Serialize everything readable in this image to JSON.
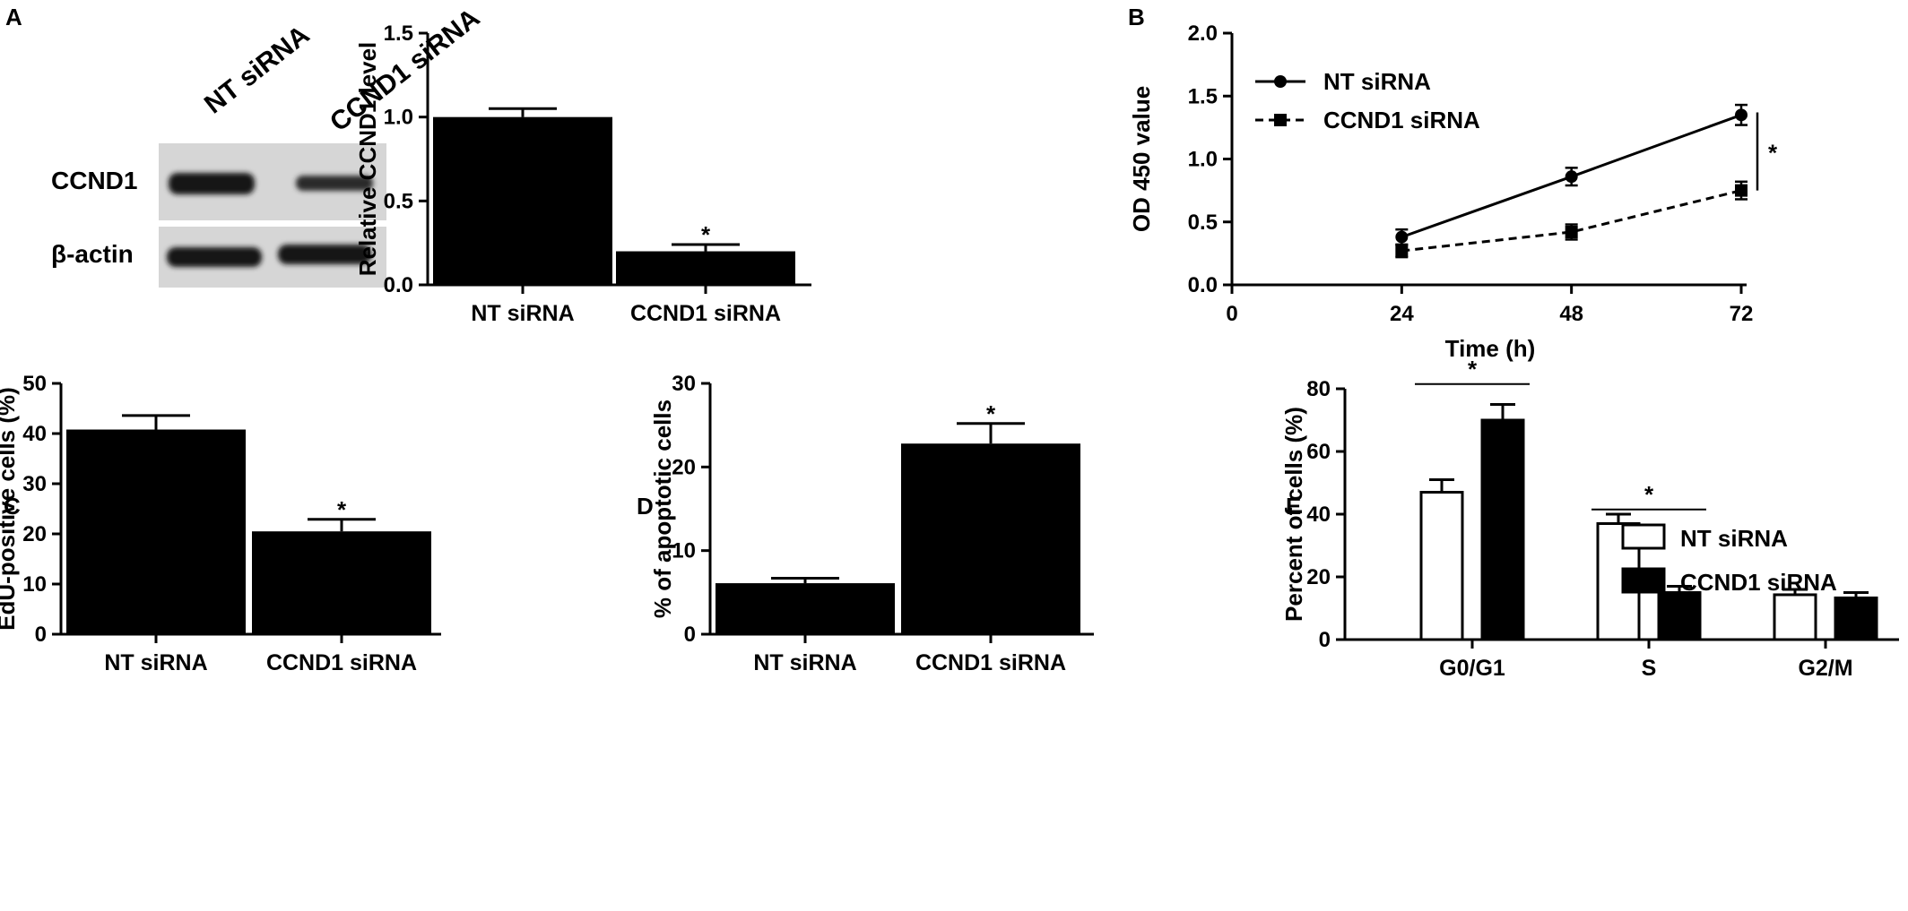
{
  "panels": {
    "a": "A",
    "b": "B",
    "c": "C",
    "d": "D",
    "e": "E"
  },
  "blot": {
    "lane_labels": [
      "NT siRNA",
      "CCND1 siRNA"
    ],
    "row_labels": [
      "CCND1",
      "β-actin"
    ]
  },
  "chart_data": [
    {
      "id": "A",
      "type": "bar",
      "categories": [
        "NT siRNA",
        "CCND1 siRNA"
      ],
      "values": [
        1.0,
        0.2
      ],
      "errors": [
        0.05,
        0.04
      ],
      "ylabel": "Relative CCND1 level",
      "ylim": [
        0,
        1.5
      ],
      "yticks": [
        "0.0",
        "0.5",
        "1.0",
        "1.5"
      ],
      "yticks_values": [
        0,
        0.5,
        1.0,
        1.5
      ],
      "annotations": [
        "",
        "*"
      ]
    },
    {
      "id": "B",
      "type": "line",
      "x": [
        24,
        48,
        72
      ],
      "xlabel": "Time (h)",
      "ylabel": "OD 450 value",
      "xlim": [
        0,
        72
      ],
      "xticks": [
        "0",
        "24",
        "48",
        "72"
      ],
      "xticks_values": [
        0,
        24,
        48,
        72
      ],
      "ylim": [
        0,
        2.0
      ],
      "yticks": [
        "0.0",
        "0.5",
        "1.0",
        "1.5",
        "2.0"
      ],
      "yticks_values": [
        0,
        0.5,
        1.0,
        1.5,
        2.0
      ],
      "series": [
        {
          "name": "NT siRNA",
          "values": [
            0.38,
            0.86,
            1.35
          ],
          "errors": [
            0.06,
            0.07,
            0.08
          ],
          "marker": "circle",
          "line": "solid"
        },
        {
          "name": "CCND1 siRNA",
          "values": [
            0.27,
            0.42,
            0.75
          ],
          "errors": [
            0.05,
            0.06,
            0.07
          ],
          "marker": "square",
          "line": "dashed"
        }
      ],
      "legend_position": "top-left",
      "annotation": "*"
    },
    {
      "id": "C",
      "type": "bar",
      "categories": [
        "NT siRNA",
        "CCND1 siRNA"
      ],
      "values": [
        40.8,
        20.5
      ],
      "errors": [
        2.8,
        2.4
      ],
      "ylabel": "EdU-positive cells (%)",
      "ylim": [
        0,
        50
      ],
      "yticks": [
        "0",
        "10",
        "20",
        "30",
        "40",
        "50"
      ],
      "yticks_values": [
        0,
        10,
        20,
        30,
        40,
        50
      ],
      "annotations": [
        "",
        "*"
      ]
    },
    {
      "id": "D",
      "type": "bar",
      "categories": [
        "NT siRNA",
        "CCND1 siRNA"
      ],
      "values": [
        6.1,
        22.8
      ],
      "errors": [
        0.6,
        2.4
      ],
      "ylabel": "% of apoptotic cells",
      "ylim": [
        0,
        30
      ],
      "yticks": [
        "0",
        "10",
        "20",
        "30"
      ],
      "yticks_values": [
        0,
        10,
        20,
        30
      ],
      "annotations": [
        "",
        "*"
      ]
    },
    {
      "id": "E",
      "type": "bar",
      "categories": [
        "G0/G1",
        "S",
        "G2/M"
      ],
      "ylabel": "Percent of cells (%)",
      "ylim": [
        0,
        80
      ],
      "yticks": [
        "0",
        "20",
        "40",
        "60",
        "80"
      ],
      "yticks_values": [
        0,
        20,
        40,
        60,
        80
      ],
      "series": [
        {
          "name": "NT siRNA",
          "values": [
            47,
            37,
            14.3
          ],
          "errors": [
            4,
            3,
            1.7
          ],
          "fill": "#ffffff"
        },
        {
          "name": "CCND1 siRNA",
          "values": [
            70,
            15,
            13.3
          ],
          "errors": [
            5,
            2,
            1.7
          ],
          "fill": "#000000"
        }
      ],
      "legend_position": "top-right",
      "annotations": [
        "*",
        "*",
        ""
      ]
    }
  ]
}
